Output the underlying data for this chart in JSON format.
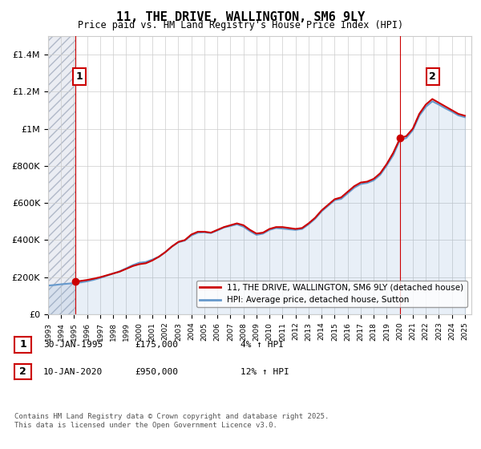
{
  "title": "11, THE DRIVE, WALLINGTON, SM6 9LY",
  "subtitle": "Price paid vs. HM Land Registry's House Price Index (HPI)",
  "legend_label_red": "11, THE DRIVE, WALLINGTON, SM6 9LY (detached house)",
  "legend_label_blue": "HPI: Average price, detached house, Sutton",
  "annotation1_label": "1",
  "annotation1_date": "30-JAN-1995",
  "annotation1_price": "£175,000",
  "annotation1_hpi": "4% ↑ HPI",
  "annotation2_label": "2",
  "annotation2_date": "10-JAN-2020",
  "annotation2_price": "£950,000",
  "annotation2_hpi": "12% ↑ HPI",
  "footer": "Contains HM Land Registry data © Crown copyright and database right 2025.\nThis data is licensed under the Open Government Licence v3.0.",
  "red_color": "#cc0000",
  "blue_color": "#6699cc",
  "vline_color": "#cc0000",
  "background_hatch_color": "#d0d8e8",
  "ylim": [
    0,
    1500000
  ],
  "yticks": [
    0,
    200000,
    400000,
    600000,
    800000,
    1000000,
    1200000,
    1400000
  ],
  "ytick_labels": [
    "£0",
    "£200K",
    "£400K",
    "£600K",
    "£800K",
    "£1M",
    "£1.2M",
    "£1.4M"
  ],
  "red_x": [
    1995.08,
    1995.5,
    1996.0,
    1996.5,
    1997.0,
    1997.5,
    1998.0,
    1998.5,
    1999.0,
    1999.5,
    2000.0,
    2000.5,
    2001.0,
    2001.5,
    2002.0,
    2002.5,
    2003.0,
    2003.5,
    2004.0,
    2004.5,
    2005.0,
    2005.5,
    2006.0,
    2006.5,
    2007.0,
    2007.5,
    2008.0,
    2008.5,
    2009.0,
    2009.5,
    2010.0,
    2010.5,
    2011.0,
    2011.5,
    2012.0,
    2012.5,
    2013.0,
    2013.5,
    2014.0,
    2014.5,
    2015.0,
    2015.5,
    2016.0,
    2016.5,
    2017.0,
    2017.5,
    2018.0,
    2018.5,
    2019.0,
    2019.5,
    2020.03,
    2020.5,
    2021.0,
    2021.5,
    2022.0,
    2022.5,
    2023.0,
    2023.5,
    2024.0,
    2024.5,
    2025.0
  ],
  "red_y": [
    175000,
    180000,
    185000,
    192000,
    200000,
    210000,
    220000,
    230000,
    245000,
    260000,
    270000,
    275000,
    290000,
    310000,
    335000,
    365000,
    390000,
    400000,
    430000,
    445000,
    445000,
    440000,
    455000,
    470000,
    480000,
    490000,
    480000,
    455000,
    435000,
    440000,
    460000,
    470000,
    470000,
    465000,
    460000,
    465000,
    490000,
    520000,
    560000,
    590000,
    620000,
    630000,
    660000,
    690000,
    710000,
    715000,
    730000,
    760000,
    810000,
    870000,
    950000,
    960000,
    1000000,
    1080000,
    1130000,
    1160000,
    1140000,
    1120000,
    1100000,
    1080000,
    1070000
  ],
  "blue_x": [
    1993.0,
    1993.5,
    1994.0,
    1994.5,
    1995.0,
    1995.5,
    1996.0,
    1996.5,
    1997.0,
    1997.5,
    1998.0,
    1998.5,
    1999.0,
    1999.5,
    2000.0,
    2000.5,
    2001.0,
    2001.5,
    2002.0,
    2002.5,
    2003.0,
    2003.5,
    2004.0,
    2004.5,
    2005.0,
    2005.5,
    2006.0,
    2006.5,
    2007.0,
    2007.5,
    2008.0,
    2008.5,
    2009.0,
    2009.5,
    2010.0,
    2010.5,
    2011.0,
    2011.5,
    2012.0,
    2012.5,
    2013.0,
    2013.5,
    2014.0,
    2014.5,
    2015.0,
    2015.5,
    2016.0,
    2016.5,
    2017.0,
    2017.5,
    2018.0,
    2018.5,
    2019.0,
    2019.5,
    2020.0,
    2020.5,
    2021.0,
    2021.5,
    2022.0,
    2022.5,
    2023.0,
    2023.5,
    2024.0,
    2024.5,
    2025.0
  ],
  "blue_y": [
    155000,
    158000,
    162000,
    165000,
    168000,
    172000,
    178000,
    186000,
    196000,
    208000,
    220000,
    232000,
    248000,
    265000,
    278000,
    282000,
    295000,
    310000,
    335000,
    365000,
    388000,
    398000,
    425000,
    440000,
    442000,
    438000,
    452000,
    468000,
    476000,
    485000,
    472000,
    448000,
    428000,
    435000,
    455000,
    465000,
    462000,
    458000,
    455000,
    460000,
    485000,
    515000,
    555000,
    585000,
    615000,
    622000,
    652000,
    682000,
    702000,
    708000,
    722000,
    752000,
    802000,
    858000,
    938000,
    950000,
    992000,
    1070000,
    1118000,
    1148000,
    1130000,
    1110000,
    1092000,
    1072000,
    1062000
  ],
  "point1_x": 1995.08,
  "point1_y": 175000,
  "point2_x": 2020.03,
  "point2_y": 950000,
  "vline1_x": 1995.08,
  "vline2_x": 2020.03,
  "xlim_left": 1993.0,
  "xlim_right": 2025.5
}
